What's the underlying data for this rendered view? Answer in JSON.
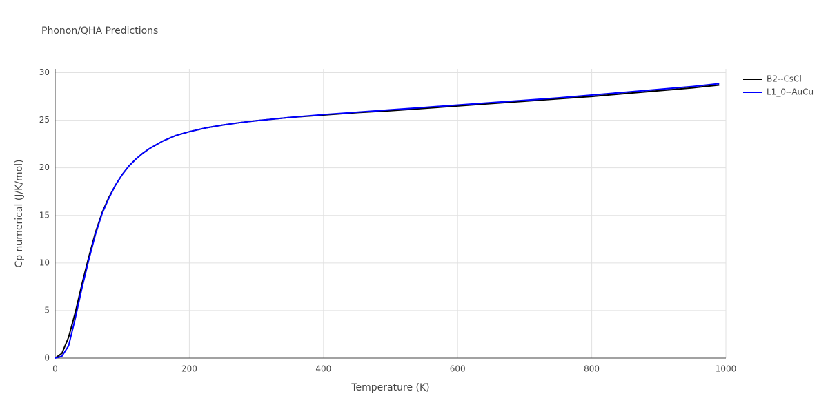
{
  "chart_data": {
    "type": "line",
    "title": "Phonon/QHA Predictions",
    "x_label": "Temperature (K)",
    "y_label": "Cp numerical (J/K/mol)",
    "x": [
      0,
      10,
      20,
      30,
      40,
      50,
      60,
      70,
      80,
      90,
      100,
      110,
      120,
      130,
      140,
      150,
      160,
      170,
      180,
      190,
      200,
      225,
      250,
      275,
      300,
      350,
      400,
      450,
      500,
      550,
      600,
      650,
      700,
      750,
      800,
      850,
      900,
      950,
      990
    ],
    "series": [
      {
        "name": "B2--CsCl",
        "color": "#000000",
        "values": [
          0,
          0.5,
          2.2,
          4.8,
          7.8,
          10.6,
          13.2,
          15.3,
          16.9,
          18.2,
          19.3,
          20.2,
          20.9,
          21.5,
          22.0,
          22.4,
          22.8,
          23.1,
          23.4,
          23.6,
          23.8,
          24.2,
          24.5,
          24.75,
          24.95,
          25.3,
          25.55,
          25.8,
          26.0,
          26.25,
          26.5,
          26.75,
          27.0,
          27.25,
          27.5,
          27.8,
          28.1,
          28.4,
          28.7
        ]
      },
      {
        "name": "L1_0--AuCu",
        "color": "#0000ff",
        "values": [
          0,
          0.2,
          1.3,
          4.2,
          7.4,
          10.3,
          13.0,
          15.2,
          16.8,
          18.2,
          19.3,
          20.2,
          20.9,
          21.5,
          22.0,
          22.4,
          22.8,
          23.1,
          23.4,
          23.6,
          23.8,
          24.2,
          24.5,
          24.75,
          24.95,
          25.3,
          25.6,
          25.85,
          26.1,
          26.35,
          26.6,
          26.85,
          27.1,
          27.35,
          27.65,
          27.95,
          28.25,
          28.55,
          28.85
        ]
      }
    ],
    "xlim": [
      0,
      1000
    ],
    "ylim": [
      0,
      30.4
    ],
    "xticks": [
      0,
      200,
      400,
      600,
      800,
      1000
    ],
    "yticks": [
      0,
      5,
      10,
      15,
      20,
      25,
      30
    ],
    "grid": true,
    "legend": "right"
  }
}
